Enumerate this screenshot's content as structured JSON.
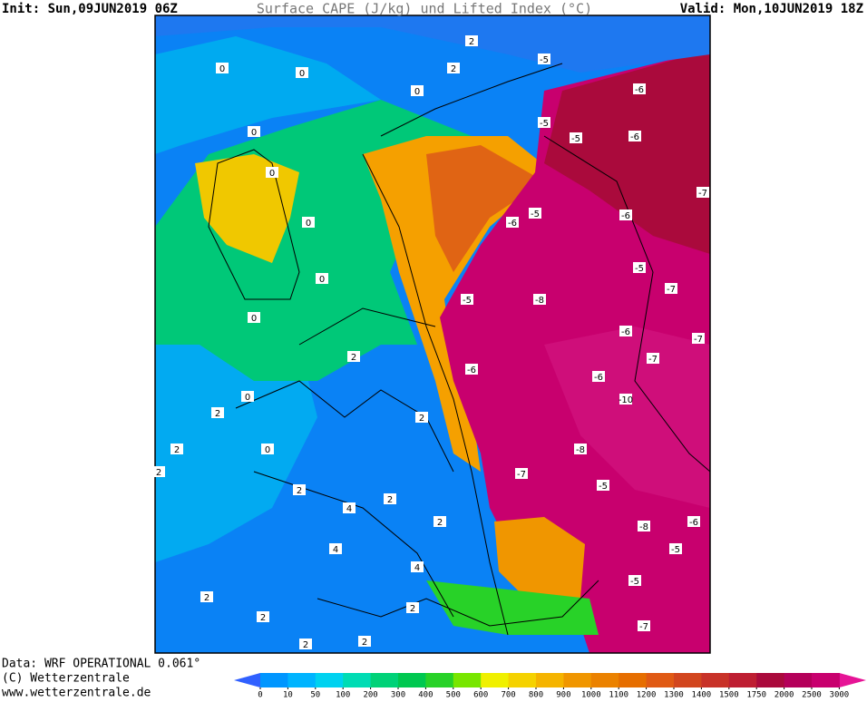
{
  "header": {
    "init": "Init: Sun,09JUN2019 06Z",
    "title": "Surface CAPE (J/kg) und Lifted Index (°C)",
    "valid": "Valid: Mon,10JUN2019 18Z"
  },
  "footer": {
    "data": "Data: WRF OPERATIONAL 0.061°",
    "copyright": "(C) Wetterzentrale",
    "url": "www.wetterzentrale.de"
  },
  "colorbar": {
    "ticks": [
      0,
      10,
      50,
      100,
      200,
      300,
      400,
      500,
      600,
      700,
      800,
      900,
      1000,
      1100,
      1200,
      1300,
      1400,
      1500,
      1750,
      2000,
      2500,
      3000
    ],
    "colors": [
      "#0096ff",
      "#00b4ff",
      "#00d2f0",
      "#00dcb4",
      "#00d278",
      "#00c850",
      "#28d228",
      "#78e600",
      "#f0f000",
      "#f5d200",
      "#f5b400",
      "#f09600",
      "#eb8200",
      "#e66e00",
      "#e05a14",
      "#d2461e",
      "#c83228",
      "#be1e32",
      "#aa0a3c",
      "#b4005a",
      "#c8006e"
    ],
    "low_color": "#3060ff",
    "high_color": "#e61496"
  },
  "map": {
    "labels": [
      0,
      0,
      0,
      2,
      2,
      -5,
      -6,
      -6,
      -7,
      -6,
      -5,
      -5,
      -5,
      -6,
      -5,
      -7,
      -6,
      -7,
      -6,
      -7,
      -10,
      -7,
      -5,
      -8,
      -8,
      -6,
      -5,
      -5,
      -7,
      -5,
      -6,
      -8,
      0,
      0,
      0,
      0,
      0,
      0,
      0,
      2,
      2,
      2,
      4,
      4,
      2,
      4,
      2,
      2,
      2,
      2,
      2,
      2,
      2,
      2,
      2
    ]
  }
}
